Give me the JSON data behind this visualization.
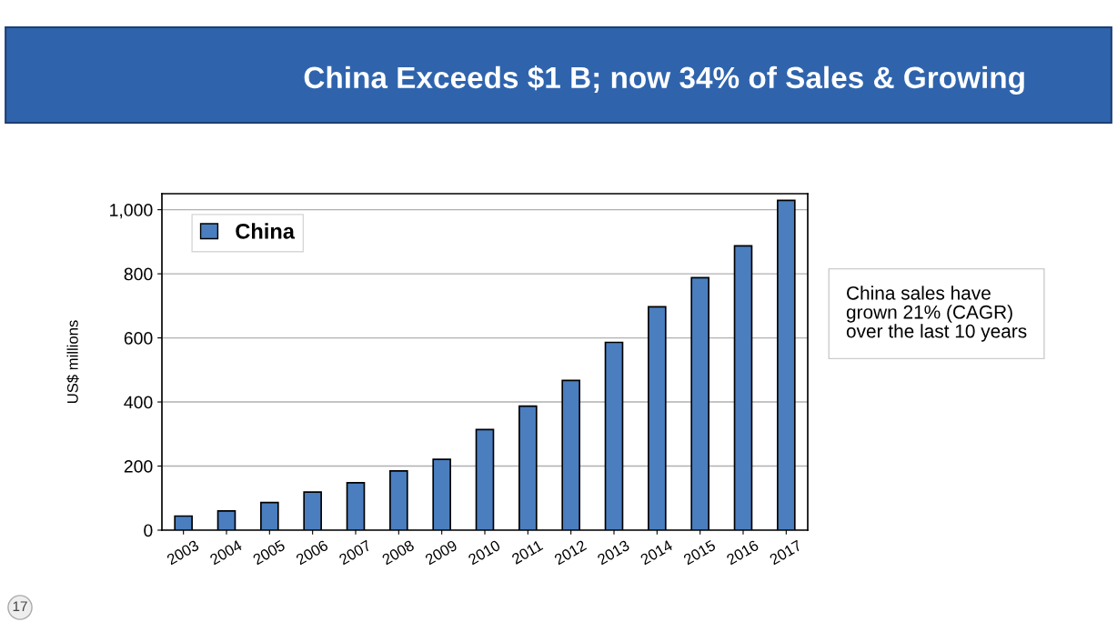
{
  "chart_data": {
    "type": "bar",
    "title": "China Exceeds $1 B; now 34% of Sales & Growing",
    "ylabel": "US$ millions",
    "categories": [
      "2003",
      "2004",
      "2005",
      "2006",
      "2007",
      "2008",
      "2009",
      "2010",
      "2011",
      "2012",
      "2013",
      "2014",
      "2015",
      "2016",
      "2017"
    ],
    "series": [
      {
        "name": "China",
        "color": "#4a7ebf",
        "values": [
          44,
          60,
          86,
          119,
          148,
          185,
          221,
          314,
          387,
          467,
          586,
          697,
          788,
          887,
          1029
        ]
      }
    ],
    "ylim": [
      0,
      1050
    ],
    "yticks": [
      0,
      200,
      400,
      600,
      800,
      {
        "value": 1000,
        "label": "1,000"
      }
    ],
    "grid": "y",
    "legend": "top left",
    "annotations": [
      "China sales have\ngrown 21% (CAGR)\nover the last 10 years",
      "17"
    ]
  }
}
